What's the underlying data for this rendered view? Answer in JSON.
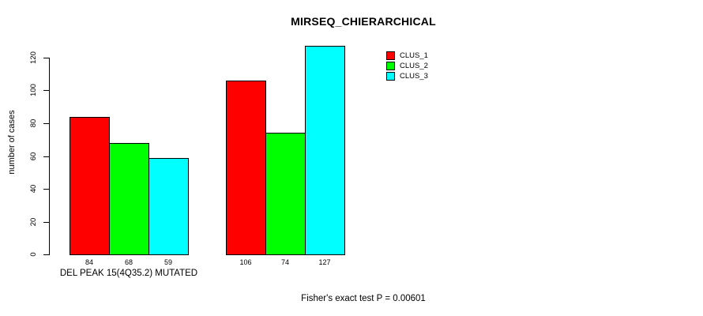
{
  "chart_data": {
    "type": "bar",
    "title": "MIRSEQ_CHIERARCHICAL",
    "ylabel": "number of cases",
    "xlabel": "",
    "categories": [
      "DEL PEAK 15(4Q35.2) MUTATED",
      ""
    ],
    "series": [
      {
        "name": "CLUS_1",
        "color": "#ff0000",
        "values": [
          84,
          106
        ]
      },
      {
        "name": "CLUS_2",
        "color": "#00ff00",
        "values": [
          68,
          74
        ]
      },
      {
        "name": "CLUS_3",
        "color": "#00ffff",
        "values": [
          59,
          127
        ]
      }
    ],
    "bar_value_labels": [
      [
        84,
        68,
        59
      ],
      [
        106,
        74,
        127
      ]
    ],
    "yticks": [
      0,
      20,
      40,
      60,
      80,
      100,
      120
    ],
    "ylim": [
      0,
      130
    ],
    "grid": false,
    "legend_position": "top-right",
    "legend_entries": [
      "CLUS_1",
      "CLUS_2",
      "CLUS_3"
    ],
    "annotation": "Fisher's exact test P = 0.00601"
  }
}
